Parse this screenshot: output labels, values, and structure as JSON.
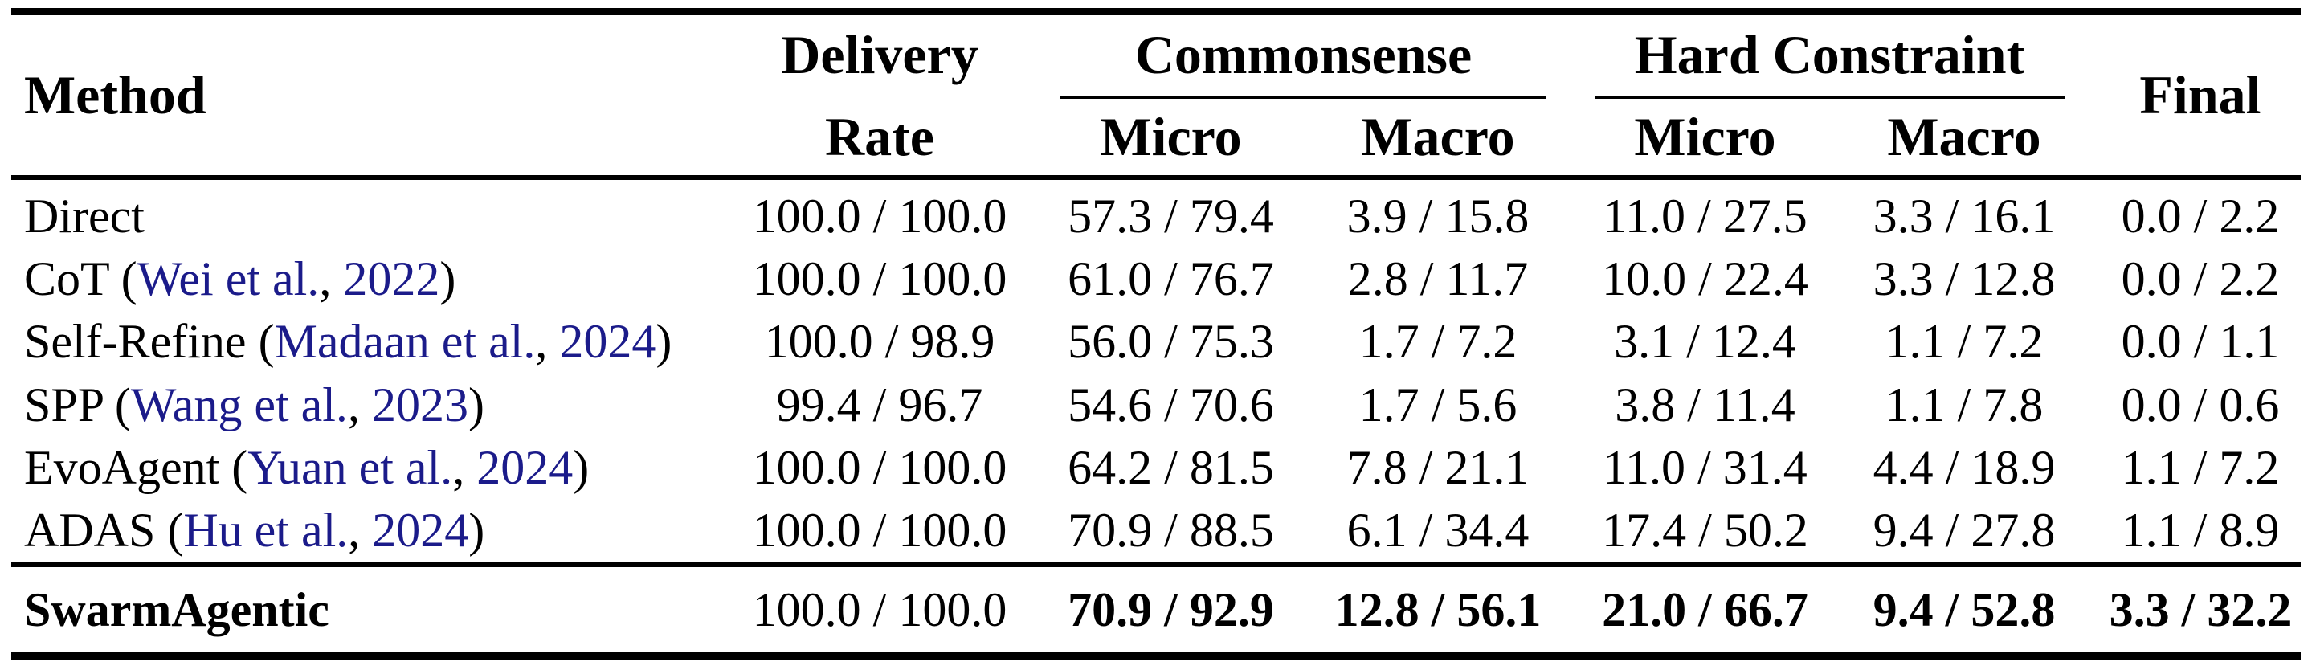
{
  "colors": {
    "background": "#ffffff",
    "text": "#000000",
    "citation_link": "#1b1b8a"
  },
  "table": {
    "headers": {
      "method": "Method",
      "delivery_top": "Delivery",
      "delivery_bottom": "Rate",
      "group_commonsense": "Commonsense",
      "group_hard_constraint": "Hard Constraint",
      "cs_micro": "Micro",
      "cs_macro": "Macro",
      "hc_micro": "Micro",
      "hc_macro": "Macro",
      "final": "Final"
    },
    "rows": [
      {
        "method_parts": {
          "p0": "Direct"
        },
        "delivery": "100.0 / 100.0",
        "cs_micro": "57.3 / 79.4",
        "cs_macro": "3.9 / 15.8",
        "hc_micro": "11.0 / 27.5",
        "hc_macro": "3.3 / 16.1",
        "final": "0.0 / 2.2"
      },
      {
        "method_parts": {
          "p0": "CoT (",
          "p1": "Wei et al.",
          "p2": ", ",
          "p3": "2022",
          "p4": ")"
        },
        "delivery": "100.0 / 100.0",
        "cs_micro": "61.0 / 76.7",
        "cs_macro": "2.8 / 11.7",
        "hc_micro": "10.0 / 22.4",
        "hc_macro": "3.3 / 12.8",
        "final": "0.0 / 2.2"
      },
      {
        "method_parts": {
          "p0": "Self-Refine (",
          "p1": "Madaan et al.",
          "p2": ", ",
          "p3": "2024",
          "p4": ")"
        },
        "delivery": "100.0 / 98.9",
        "cs_micro": "56.0 / 75.3",
        "cs_macro": "1.7 / 7.2",
        "hc_micro": "3.1 / 12.4",
        "hc_macro": "1.1 / 7.2",
        "final": "0.0 / 1.1"
      },
      {
        "method_parts": {
          "p0": "SPP (",
          "p1": "Wang et al.",
          "p2": ", ",
          "p3": "2023",
          "p4": ")"
        },
        "delivery": "99.4 / 96.7",
        "cs_micro": "54.6 / 70.6",
        "cs_macro": "1.7 / 5.6",
        "hc_micro": "3.8 / 11.4",
        "hc_macro": "1.1 / 7.8",
        "final": "0.0 / 0.6"
      },
      {
        "method_parts": {
          "p0": "EvoAgent (",
          "p1": "Yuan et al.",
          "p2": ", ",
          "p3": "2024",
          "p4": ")"
        },
        "delivery": "100.0 / 100.0",
        "cs_micro": "64.2 / 81.5",
        "cs_macro": "7.8 / 21.1",
        "hc_micro": "11.0 / 31.4",
        "hc_macro": "4.4 / 18.9",
        "final": "1.1 / 7.2"
      },
      {
        "method_parts": {
          "p0": "ADAS (",
          "p1": "Hu et al.",
          "p2": ", ",
          "p3": "2024",
          "p4": ")"
        },
        "delivery": "100.0 / 100.0",
        "cs_micro": "70.9 / 88.5",
        "cs_macro": "6.1 / 34.4",
        "hc_micro": "17.4 / 50.2",
        "hc_macro": "9.4 / 27.8",
        "final": "1.1 / 8.9"
      }
    ],
    "highlight_row": {
      "method": "SwarmAgentic",
      "delivery": "100.0 / 100.0",
      "cs_micro": "70.9 / 92.9",
      "cs_macro": "12.8 / 56.1",
      "hc_micro": "21.0 / 66.7",
      "hc_macro": "9.4 / 52.8",
      "final": "3.3 / 32.2"
    }
  }
}
